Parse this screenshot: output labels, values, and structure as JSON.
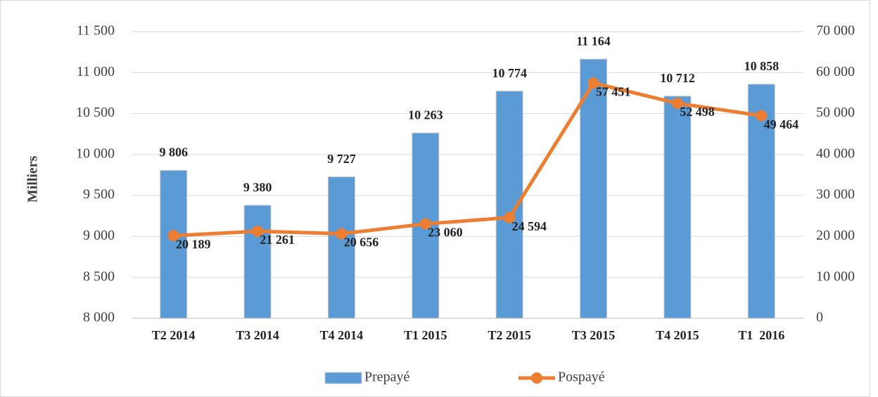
{
  "chart_data": {
    "type": "bar_line",
    "y_label": "Milliers",
    "categories": [
      "T2 2014",
      "T3 2014",
      "T4 2014",
      "T1 2015",
      "T2 2015",
      "T3 2015",
      "T4 2015",
      "T1  2016"
    ],
    "series": [
      {
        "name": "Prepayé",
        "type": "bar",
        "color": "#5b9bd5",
        "axis": "y",
        "values": [
          9806,
          9380,
          9727,
          10263,
          10774,
          11164,
          10712,
          10858
        ],
        "value_labels": [
          "9 806",
          "9 380",
          "9 727",
          "10 263",
          "10 774",
          "11 164",
          "10 712",
          "10 858"
        ]
      },
      {
        "name": "Pospayé",
        "type": "line",
        "color": "#ed7d31",
        "axis": "y2",
        "values": [
          20189,
          21261,
          20656,
          23060,
          24594,
          57451,
          52498,
          49464
        ],
        "value_labels": [
          "20 189",
          "21 261",
          "20 656",
          "23 060",
          "24 594",
          "57 451",
          "52 498",
          "49 464"
        ]
      }
    ],
    "ylim": [
      8000,
      11500
    ],
    "yticks": [
      {
        "value": 8000,
        "label": "8 000"
      },
      {
        "value": 8500,
        "label": "8 500"
      },
      {
        "value": 9000,
        "label": "9 000"
      },
      {
        "value": 9500,
        "label": "9 500"
      },
      {
        "value": 10000,
        "label": "10 000"
      },
      {
        "value": 10500,
        "label": "10 500"
      },
      {
        "value": 11000,
        "label": "11 000"
      },
      {
        "value": 11500,
        "label": "11 500"
      }
    ],
    "y2lim": [
      0,
      70000
    ],
    "y2ticks": [
      0,
      {
        "value": 10000,
        "label": "10 000"
      },
      {
        "value": 20000,
        "label": "20 000"
      },
      {
        "value": 30000,
        "label": "30 000"
      },
      {
        "value": 40000,
        "label": "40 000"
      },
      {
        "value": 50000,
        "label": "50 000"
      },
      {
        "value": 60000,
        "label": "60 000"
      },
      {
        "value": 70000,
        "label": "70 000"
      }
    ],
    "grid": true,
    "legend": "bottom"
  }
}
